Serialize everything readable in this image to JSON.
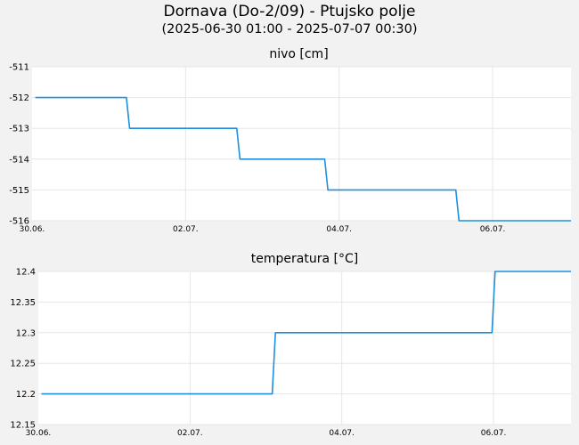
{
  "title": "Dornava (Do-2/09) - Ptujsko polje",
  "subtitle": "(2025-06-30 01:00 - 2025-07-07 00:30)",
  "colors": {
    "background": "#f2f2f2",
    "plot_background": "#ffffff",
    "grid": "#e6e6e6",
    "line": "#1f8fdc"
  },
  "chart_data": [
    {
      "type": "line",
      "title": "nivo [cm]",
      "xlim": [
        "2025-06-30 00:00",
        "2025-07-07 00:30"
      ],
      "ylim": [
        -516,
        -511
      ],
      "x_ticks": [
        "30.06.",
        "02.07.",
        "04.07.",
        "06.07."
      ],
      "y_ticks": [
        "-511",
        "-512",
        "-513",
        "-514",
        "-515",
        "-516"
      ],
      "grid": true,
      "series": [
        {
          "x": [
            "2025-06-30 01:00",
            "2025-07-01 05:30",
            "2025-07-01 06:30",
            "2025-07-02 16:00",
            "2025-07-02 17:00",
            "2025-07-03 19:30",
            "2025-07-03 20:30",
            "2025-07-05 12:30",
            "2025-07-05 13:30",
            "2025-07-07 00:30"
          ],
          "values": [
            -512,
            -512,
            -513,
            -513,
            -514,
            -514,
            -515,
            -515,
            -516,
            -516
          ]
        }
      ]
    },
    {
      "type": "line",
      "title": "temperatura [°C]",
      "xlim": [
        "2025-06-30 00:00",
        "2025-07-07 00:30"
      ],
      "ylim": [
        12.15,
        12.4
      ],
      "x_ticks": [
        "30.06.",
        "02.07.",
        "04.07.",
        "06.07."
      ],
      "y_ticks": [
        "12.4",
        "12.35",
        "12.3",
        "12.25",
        "12.2",
        "12.15"
      ],
      "grid": true,
      "series": [
        {
          "x": [
            "2025-06-30 01:00",
            "2025-07-03 02:00",
            "2025-07-03 03:00",
            "2025-07-05 23:30",
            "2025-07-06 00:30",
            "2025-07-07 00:30"
          ],
          "values": [
            12.2,
            12.2,
            12.3,
            12.3,
            12.4,
            12.4
          ]
        }
      ]
    }
  ]
}
